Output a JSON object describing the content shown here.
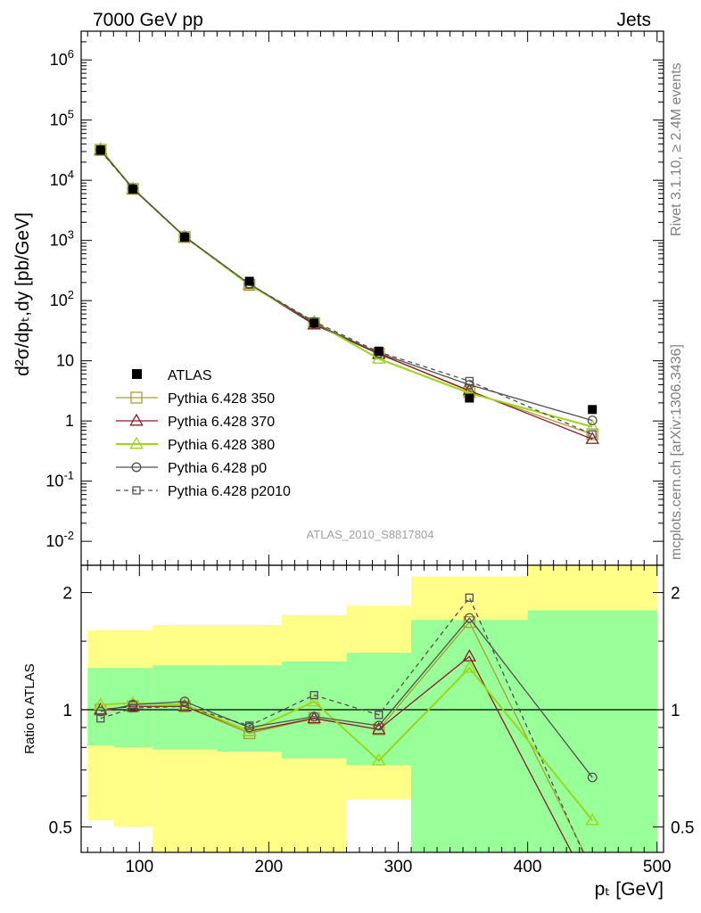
{
  "header": {
    "left": "7000 GeV pp",
    "right": "Jets"
  },
  "side_text": {
    "top": "Rivet 3.1.10, ≥ 2.4M events",
    "bottom": "mcplots.cern.ch [arXiv:1306.3436]"
  },
  "analysis_label": "ATLAS_2010_S8817804",
  "main_ylabel": "d²σ/dpₜ,dy [pb/GeV]",
  "ratio_ylabel": "Ratio to ATLAS",
  "xlabel": "pₜ [GeV]",
  "legend": [
    "ATLAS",
    "Pythia 6.428 350",
    "Pythia 6.428 370",
    "Pythia 6.428 380",
    "Pythia 6.428 p0",
    "Pythia 6.428 p2010"
  ],
  "colors": {
    "data": "#000000",
    "p350": "#a8a032",
    "p370": "#8b1a2a",
    "p380": "#9ad61a",
    "p0": "#505050",
    "p2010": "#505050",
    "band_inner": "#99ff99",
    "band_outer": "#ffff88"
  },
  "chart_data": [
    {
      "type": "scatter",
      "yscale": "log",
      "xlim": [
        55,
        505
      ],
      "ylim": [
        0.004,
        3000000
      ],
      "x_ticks": [
        100,
        200,
        300,
        400,
        500
      ],
      "y_ticks": [
        "10^-2",
        "10^-1",
        "1",
        "10",
        "10^2",
        "10^3",
        "10^4",
        "10^5",
        "10^6"
      ],
      "legend_position": "lower-left",
      "data": {
        "name": "ATLAS",
        "x": [
          70,
          95,
          135,
          185,
          235,
          285,
          355,
          450
        ],
        "y": [
          32000,
          7100,
          1130,
          210,
          42,
          14.5,
          2.4,
          1.55
        ]
      },
      "series": [
        {
          "name": "Pythia 6.428 350",
          "marker": "square-open",
          "style": "solid",
          "x": [
            70,
            95,
            135,
            185,
            235,
            285,
            355,
            450
          ],
          "y": [
            32000,
            7200,
            1140,
            182,
            42,
            13.2,
            3.1,
            0.6
          ]
        },
        {
          "name": "Pythia 6.428 370",
          "marker": "triangle-open",
          "style": "solid",
          "x": [
            70,
            95,
            135,
            185,
            235,
            285,
            355,
            450
          ],
          "y": [
            32000,
            7200,
            1140,
            185,
            40,
            13,
            3.2,
            0.5
          ]
        },
        {
          "name": "Pythia 6.428 380",
          "marker": "triangle-open",
          "style": "solid",
          "x": [
            70,
            95,
            135,
            185,
            235,
            285,
            355,
            450
          ],
          "y": [
            33000,
            7300,
            1150,
            182,
            44,
            10.8,
            2.9,
            0.8
          ]
        },
        {
          "name": "Pythia 6.428 p0",
          "marker": "circle-open",
          "style": "solid",
          "x": [
            70,
            95,
            135,
            185,
            235,
            285,
            355,
            450
          ],
          "y": [
            31500,
            7300,
            1160,
            190,
            42,
            13.4,
            4.0,
            1.02
          ]
        },
        {
          "name": "Pythia 6.428 p2010",
          "marker": "square-open",
          "style": "dashed",
          "x": [
            70,
            95,
            135,
            185,
            235,
            285,
            355,
            450
          ],
          "y": [
            30500,
            7200,
            1150,
            188,
            45,
            14,
            4.6,
            0.6
          ]
        }
      ]
    },
    {
      "type": "line",
      "yscale": "log",
      "xlim": [
        55,
        505
      ],
      "ylim": [
        0.43,
        2.35
      ],
      "y_ticks": [
        0.5,
        1,
        2
      ],
      "x_ticks": [
        100,
        200,
        300,
        400,
        500
      ],
      "reference_line": 1,
      "bands": [
        {
          "x0": 60,
          "x1": 80,
          "inner": [
            0.81,
            1.28
          ],
          "outer": [
            0.52,
            1.6
          ]
        },
        {
          "x0": 80,
          "x1": 110,
          "inner": [
            0.8,
            1.28
          ],
          "outer": [
            0.5,
            1.6
          ]
        },
        {
          "x0": 110,
          "x1": 160,
          "inner": [
            0.79,
            1.3
          ],
          "outer": [
            0.42,
            1.65
          ]
        },
        {
          "x0": 160,
          "x1": 210,
          "inner": [
            0.78,
            1.3
          ],
          "outer": [
            0.41,
            1.65
          ]
        },
        {
          "x0": 210,
          "x1": 260,
          "inner": [
            0.75,
            1.33
          ],
          "outer": [
            0.4,
            1.75
          ]
        },
        {
          "x0": 260,
          "x1": 310,
          "inner": [
            0.72,
            1.4
          ],
          "outer": [
            0.59,
            1.85
          ]
        },
        {
          "x0": 310,
          "x1": 400,
          "inner": [
            0.35,
            1.7
          ],
          "outer": [
            0.35,
            2.2
          ]
        },
        {
          "x0": 400,
          "x1": 500,
          "inner": [
            0.35,
            1.8
          ],
          "outer": [
            0.35,
            2.5
          ]
        }
      ],
      "series": [
        {
          "name": "Pythia 6.428 350",
          "style": "solid",
          "marker": "square-open",
          "x": [
            70,
            95,
            135,
            185,
            235,
            285,
            355,
            450
          ],
          "y": [
            1.0,
            1.02,
            1.02,
            0.87,
            0.95,
            0.89,
            1.68,
            0.39
          ]
        },
        {
          "name": "Pythia 6.428 370",
          "style": "solid",
          "marker": "triangle-open",
          "x": [
            70,
            95,
            135,
            185,
            235,
            285,
            355,
            450
          ],
          "y": [
            1.0,
            1.02,
            1.02,
            0.88,
            0.95,
            0.89,
            1.37,
            0.34
          ]
        },
        {
          "name": "Pythia 6.428 380",
          "style": "solid",
          "marker": "triangle-open",
          "x": [
            70,
            95,
            135,
            185,
            235,
            285,
            355,
            450
          ],
          "y": [
            1.03,
            1.04,
            1.03,
            0.88,
            1.05,
            0.74,
            1.28,
            0.52
          ]
        },
        {
          "name": "Pythia 6.428 p0",
          "style": "solid",
          "marker": "circle-open",
          "x": [
            70,
            95,
            135,
            185,
            235,
            285,
            355,
            450
          ],
          "y": [
            0.99,
            1.03,
            1.05,
            0.9,
            0.96,
            0.91,
            1.72,
            0.67
          ]
        },
        {
          "name": "Pythia 6.428 p2010",
          "style": "dashed",
          "marker": "square-open",
          "x": [
            70,
            95,
            135,
            185,
            235,
            285,
            355,
            450
          ],
          "y": [
            0.95,
            1.01,
            1.02,
            0.91,
            1.09,
            0.97,
            1.94,
            0.38
          ]
        }
      ]
    }
  ]
}
